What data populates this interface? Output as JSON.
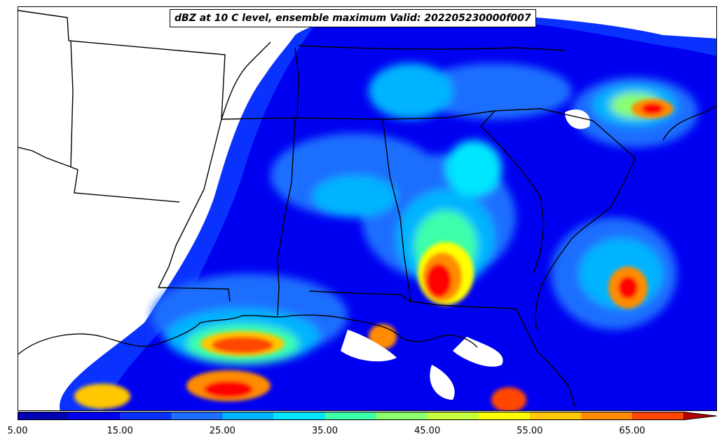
{
  "title": "dBZ at 10 C level, ensemble maximum Valid: 202205230000f007",
  "colorbar": {
    "min": 5,
    "max": 70,
    "step": 5,
    "extend": "max",
    "colors": [
      "#0000b4",
      "#0000f0",
      "#0a32ff",
      "#1e6eff",
      "#00b4ff",
      "#00e6ff",
      "#3cffaa",
      "#8cff6e",
      "#c8ff3c",
      "#ffff00",
      "#ffc800",
      "#ff8c00",
      "#ff4600",
      "#ff0000",
      "#b40000"
    ],
    "tick_labels": [
      "5.00",
      "15.00",
      "25.00",
      "35.00",
      "45.00",
      "55.00",
      "65.00"
    ]
  },
  "map": {
    "field": "dBZ",
    "level": "10 C",
    "ensemble_stat": "maximum",
    "valid": "202205230000",
    "forecast_hour": "f007"
  }
}
